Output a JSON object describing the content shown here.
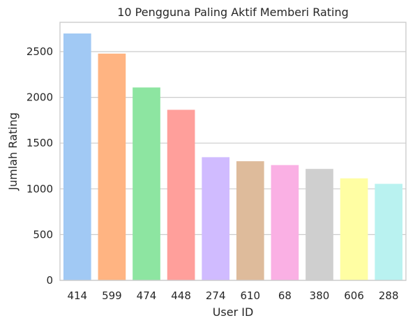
{
  "chart_data": {
    "type": "bar",
    "title": "10 Pengguna Paling Aktif Memberi Rating",
    "xlabel": "User ID",
    "ylabel": "Jumlah Rating",
    "categories": [
      "414",
      "599",
      "474",
      "448",
      "274",
      "610",
      "68",
      "380",
      "606",
      "288"
    ],
    "values": [
      2698,
      2478,
      2108,
      1864,
      1346,
      1302,
      1260,
      1218,
      1115,
      1055
    ],
    "ylim": [
      0,
      2820
    ],
    "yticks": [
      0,
      500,
      1000,
      1500,
      2000,
      2500
    ],
    "grid": true,
    "colors": [
      "#a1c9f4",
      "#ffb482",
      "#8de5a1",
      "#ff9f9b",
      "#d0bbff",
      "#debb9b",
      "#fab0e4",
      "#cfcfcf",
      "#fffea3",
      "#b9f2f0"
    ]
  }
}
